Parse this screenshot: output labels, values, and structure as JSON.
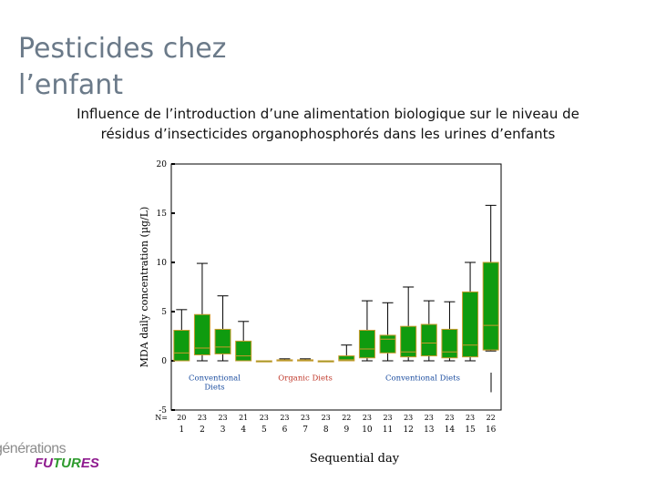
{
  "slide": {
    "title_line1": "Pesticides chez",
    "title_line2": "l’enfant",
    "subtitle_line1": "Influence de l’introduction d’une alimentation biologique sur le niveau de",
    "subtitle_line2": "résidus d’insecticides organophosphorés dans les urines d’enfants"
  },
  "logo": {
    "top": "générations",
    "bottom_a": "FU",
    "bottom_b": "TUR",
    "bottom_c": "ES"
  },
  "colors": {
    "box_fill": "#0f9b0f",
    "box_edge": "#c89b2e",
    "whisker": "#000000",
    "organic_label": "#c0392b",
    "conventional_label": "#1e4fa0"
  },
  "chart_data": {
    "type": "box",
    "title": "",
    "xlabel": "Sequential day",
    "ylabel": "MDA daily concentration (µg/L)",
    "ylim": [
      -5,
      20
    ],
    "yticks": [
      -5,
      0,
      5,
      10,
      15,
      20
    ],
    "n_label": "N=",
    "x": [
      1,
      2,
      3,
      4,
      5,
      6,
      7,
      8,
      9,
      10,
      11,
      12,
      13,
      14,
      15,
      16
    ],
    "n": [
      20,
      23,
      23,
      21,
      23,
      23,
      23,
      23,
      22,
      23,
      23,
      23,
      23,
      23,
      23,
      22
    ],
    "boxes": [
      {
        "whisker_low": 0,
        "q1": 0,
        "median": 0.8,
        "q3": 3.1,
        "whisker_high": 5.2
      },
      {
        "whisker_low": 0,
        "q1": 0.6,
        "median": 1.3,
        "q3": 4.7,
        "whisker_high": 9.9
      },
      {
        "whisker_low": 0,
        "q1": 0.7,
        "median": 1.4,
        "q3": 3.2,
        "whisker_high": 6.6
      },
      {
        "whisker_low": 0,
        "q1": 0,
        "median": 0.5,
        "q3": 2.0,
        "whisker_high": 4.0
      },
      {
        "whisker_low": 0,
        "q1": 0,
        "median": 0,
        "q3": 0,
        "whisker_high": 0
      },
      {
        "whisker_low": 0,
        "q1": 0,
        "median": 0,
        "q3": 0.1,
        "whisker_high": 0.2
      },
      {
        "whisker_low": 0,
        "q1": 0,
        "median": 0,
        "q3": 0.1,
        "whisker_high": 0.2
      },
      {
        "whisker_low": 0,
        "q1": 0,
        "median": 0,
        "q3": 0,
        "whisker_high": 0
      },
      {
        "whisker_low": 0,
        "q1": 0,
        "median": 0.1,
        "q3": 0.5,
        "whisker_high": 1.6
      },
      {
        "whisker_low": 0,
        "q1": 0.3,
        "median": 1.2,
        "q3": 3.1,
        "whisker_high": 6.1
      },
      {
        "whisker_low": 0,
        "q1": 0.8,
        "median": 2.2,
        "q3": 2.6,
        "whisker_high": 5.9
      },
      {
        "whisker_low": 0,
        "q1": 0.4,
        "median": 0.9,
        "q3": 3.5,
        "whisker_high": 7.5
      },
      {
        "whisker_low": 0,
        "q1": 0.5,
        "median": 1.8,
        "q3": 3.7,
        "whisker_high": 6.1
      },
      {
        "whisker_low": 0,
        "q1": 0.3,
        "median": 0.9,
        "q3": 3.2,
        "whisker_high": 6.0
      },
      {
        "whisker_low": 0,
        "q1": 0.4,
        "median": 1.6,
        "q3": 7.0,
        "whisker_high": 10.0
      },
      {
        "whisker_low": 1.0,
        "q1": 1.1,
        "median": 3.6,
        "q3": 10.0,
        "whisker_high": 15.8
      }
    ],
    "annotations": [
      {
        "text_line1": "Conventional",
        "text_line2": "Diets",
        "x_center": 2.6,
        "color": "conventional"
      },
      {
        "text_line1": "Organic Diets",
        "text_line2": "",
        "x_center": 7.0,
        "color": "organic"
      },
      {
        "text_line1": "Conventional Diets",
        "text_line2": "",
        "x_center": 12.7,
        "color": "conventional"
      }
    ],
    "grid": false
  }
}
